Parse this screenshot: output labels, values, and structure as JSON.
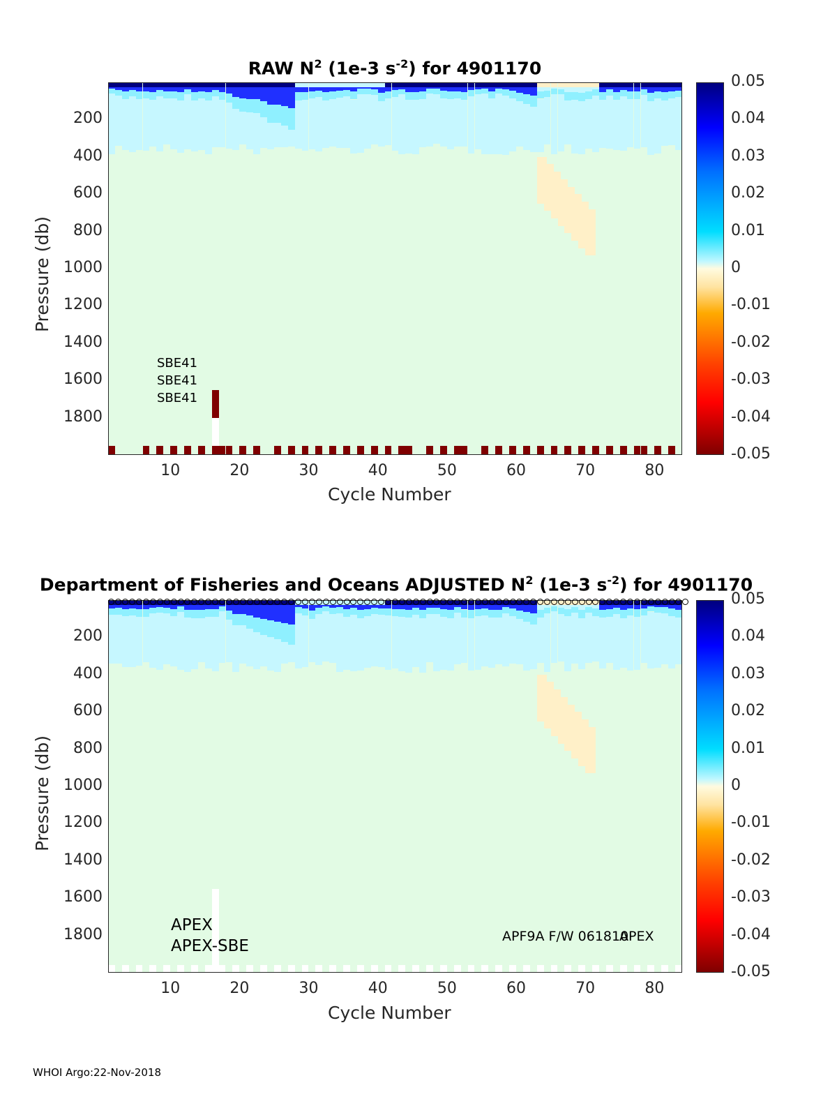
{
  "footer": "WHOI Argo:22-Nov-2018",
  "colors": {
    "background": "#e2fbe4",
    "bottom_flag": "#7f0000",
    "dark_blue": "#00007f",
    "mid_blue": "#2030ff",
    "cyan": "#8ff0ff",
    "light_cyan": "#c6f7ff",
    "cream": "#fff0c8"
  },
  "chart_data": [
    {
      "type": "heatmap",
      "title_text": "RAW N",
      "title_sup": "2",
      "title_mid": " (1e-3 s",
      "title_sup2": "-2",
      "title_end": ") for 4901170",
      "xlabel": "Cycle Number",
      "ylabel": "Pressure (db)",
      "xlim": [
        1,
        84
      ],
      "ylim": [
        0,
        2000
      ],
      "y_reversed": true,
      "xticks": [
        10,
        20,
        30,
        40,
        50,
        60,
        70,
        80
      ],
      "yticks": [
        200,
        400,
        600,
        800,
        1000,
        1200,
        1400,
        1600,
        1800
      ],
      "colorbar": {
        "ticks": [
          "0.05",
          "0.04",
          "0.03",
          "0.02",
          "0.01",
          "0",
          "-0.01",
          "-0.02",
          "-0.03",
          "-0.04",
          "-0.05"
        ],
        "range": [
          -0.05,
          0.05
        ]
      },
      "annotations": [
        "SBE41",
        "SBE41",
        "SBE41"
      ],
      "bottom_flag_cycles": [
        1,
        6,
        8,
        10,
        12,
        14,
        16,
        17,
        18,
        20,
        22,
        25,
        27,
        29,
        31,
        33,
        35,
        37,
        39,
        41,
        43,
        44,
        47,
        49,
        51,
        52,
        55,
        57,
        59,
        61,
        63,
        65,
        67,
        69,
        71,
        73,
        75,
        77,
        78,
        80,
        82
      ]
    },
    {
      "type": "heatmap",
      "title_text": "Department of Fisheries and Oceans  ADJUSTED N",
      "title_sup": "2",
      "title_mid": " (1e-3 s",
      "title_sup2": "-2",
      "title_end": ") for 4901170",
      "xlabel": "Cycle Number",
      "ylabel": "Pressure (db)",
      "xlim": [
        1,
        84
      ],
      "ylim": [
        0,
        2000
      ],
      "y_reversed": true,
      "xticks": [
        10,
        20,
        30,
        40,
        50,
        60,
        70,
        80
      ],
      "yticks": [
        200,
        400,
        600,
        800,
        1000,
        1200,
        1400,
        1600,
        1800
      ],
      "colorbar": {
        "ticks": [
          "0.05",
          "0.04",
          "0.03",
          "0.02",
          "0.01",
          "0",
          "-0.01",
          "-0.02",
          "-0.03",
          "-0.04",
          "-0.05"
        ],
        "range": [
          -0.05,
          0.05
        ]
      },
      "annotations_left": [
        "APEX",
        "APEX-SBE"
      ],
      "annotation_right_a": "APF9A F/W 061810",
      "annotation_right_b": "APEX"
    }
  ]
}
